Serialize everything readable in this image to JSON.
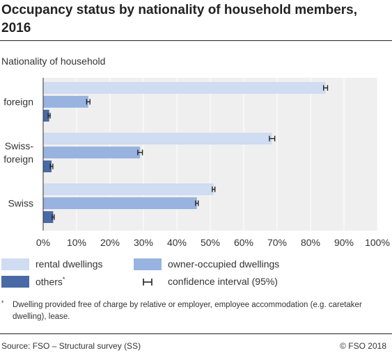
{
  "header": {
    "title": "Occupancy status by nationality of household members, 2016",
    "subtitle": "Nationality of household"
  },
  "legend": {
    "rental": "rental dwellings",
    "owner": "owner-occupied dwellings",
    "others": "others",
    "others_marker": "*",
    "ci": "confidence interval (95%)"
  },
  "footnote": {
    "marker": "*",
    "text": "Dwelling provided free of charge by relative or employer, employee accommodation (e.g. caretaker dwelling), lease."
  },
  "footer": {
    "source": "Source: FSO – Structural survey (SS)",
    "copyright": "© FSO 2018"
  },
  "colors": {
    "rental": "#cfdcf1",
    "owner": "#98b3e0",
    "others": "#4a6aa6",
    "plot_background": "#efefef",
    "gridline": "#ffffff"
  },
  "chart_data": {
    "type": "bar",
    "orientation": "horizontal",
    "categories": [
      {
        "id": "foreign",
        "lines": [
          "foreign"
        ]
      },
      {
        "id": "swiss-foreign",
        "lines": [
          "Swiss-",
          "foreign"
        ]
      },
      {
        "id": "swiss",
        "lines": [
          "Swiss"
        ]
      }
    ],
    "series": [
      {
        "name": "rental dwellings",
        "color": "#cfdcf1",
        "values": [
          84.5,
          68.5,
          51.0
        ],
        "ci_half": [
          0.6,
          0.8,
          0.4
        ]
      },
      {
        "name": "owner-occupied dwellings",
        "color": "#98b3e0",
        "values": [
          13.5,
          29.0,
          46.0
        ],
        "ci_half": [
          0.5,
          0.7,
          0.4
        ]
      },
      {
        "name": "others",
        "color": "#4a6aa6",
        "values": [
          1.8,
          2.5,
          3.0
        ],
        "ci_half": [
          0.3,
          0.4,
          0.3
        ]
      }
    ],
    "xlim": [
      0,
      100
    ],
    "xticks": [
      "0%",
      "10%",
      "20%",
      "30%",
      "40%",
      "50%",
      "60%",
      "70%",
      "80%",
      "90%",
      "100%"
    ],
    "grid": "vertical",
    "legend_position": "bottom"
  }
}
